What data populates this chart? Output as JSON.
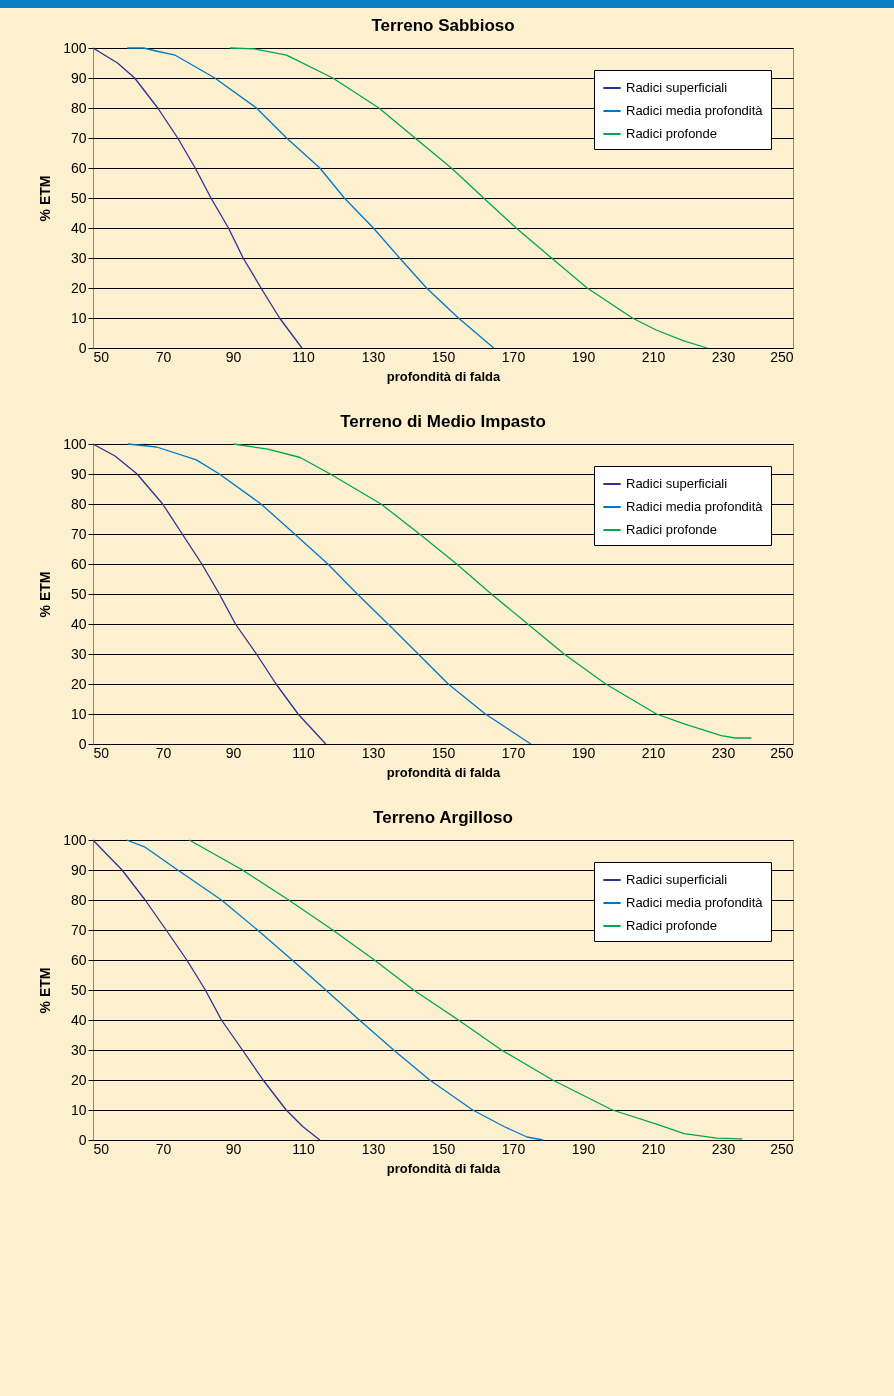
{
  "chart_data": [
    {
      "type": "line",
      "title": "Terreno Sabbioso",
      "xlabel": "profondità di falda",
      "ylabel": "% ETM",
      "xlim": [
        50,
        250
      ],
      "xticks": [
        50,
        70,
        90,
        110,
        130,
        150,
        170,
        190,
        210,
        230,
        250
      ],
      "ylim": [
        0,
        100
      ],
      "yticks": [
        0,
        10,
        20,
        30,
        40,
        50,
        60,
        70,
        80,
        90,
        100
      ],
      "grid": "y",
      "legend": "top right",
      "series": [
        {
          "name": "Radici superficiali",
          "color": "#2e3192",
          "x": [
            50,
            57,
            61.9,
            68.5,
            74.2,
            79.2,
            83.7,
            88.7,
            92.9,
            98,
            103.3,
            109.7
          ],
          "values": [
            100,
            95,
            90,
            80,
            70,
            60,
            50,
            40,
            30,
            20,
            10,
            0
          ]
        },
        {
          "name": "Radici media profondità",
          "color": "#0078c8",
          "x": [
            59.8,
            64.4,
            68,
            73.5,
            84.8,
            96.7,
            105.3,
            114.8,
            121.8,
            130.1,
            137.6,
            145.3,
            154.4,
            164.5
          ],
          "values": [
            100,
            100,
            99,
            97.6,
            90,
            80,
            70,
            60,
            50,
            40,
            30,
            20,
            10,
            0
          ]
        },
        {
          "name": "Radici profonde",
          "color": "#00a651",
          "x": [
            89.1,
            96,
            105.3,
            118.5,
            131.7,
            142,
            152.4,
            161.6,
            170.9,
            181,
            191.2,
            204.1,
            210.9,
            218.8,
            225.5
          ],
          "values": [
            100,
            99.7,
            97.6,
            90,
            80,
            70,
            60,
            50,
            40,
            30,
            20,
            10,
            6,
            2.4,
            0
          ]
        }
      ]
    },
    {
      "type": "line",
      "title": "Terreno di Medio Impasto",
      "xlabel": "profondità di falda",
      "ylabel": "% ETM",
      "xlim": [
        50,
        250
      ],
      "xticks": [
        50,
        70,
        90,
        110,
        130,
        150,
        170,
        190,
        210,
        230,
        250
      ],
      "ylim": [
        0,
        100
      ],
      "yticks": [
        0,
        10,
        20,
        30,
        40,
        50,
        60,
        70,
        80,
        90,
        100
      ],
      "grid": "y",
      "legend": "top right",
      "series": [
        {
          "name": "Radici superficiali",
          "color": "#2e3192",
          "x": [
            50,
            56.3,
            62.6,
            69.9,
            75.5,
            81.1,
            86.1,
            90.7,
            96.7,
            102.3,
            108.6,
            116.5
          ],
          "values": [
            100,
            96,
            90,
            80,
            70,
            60,
            50,
            40,
            30,
            20,
            10,
            0
          ]
        },
        {
          "name": "Radici media profondità",
          "color": "#0078c8",
          "x": [
            59.9,
            68.2,
            79.5,
            86.1,
            98,
            107.6,
            117.1,
            125.5,
            134.3,
            142.9,
            151.5,
            162.1,
            175.1
          ],
          "values": [
            100,
            99,
            94.7,
            90,
            80,
            70,
            60,
            50,
            40,
            30,
            20,
            10,
            0
          ]
        },
        {
          "name": "Radici profonde",
          "color": "#00a651",
          "x": [
            90.1,
            100,
            109.2,
            117.8,
            132.3,
            143.3,
            153.9,
            163.8,
            174.2,
            184.6,
            196.5,
            211,
            218.9,
            229.5,
            233.5,
            238.1
          ],
          "values": [
            100,
            98.3,
            95.5,
            90,
            80,
            70,
            60,
            50,
            40,
            30,
            20,
            10,
            6.7,
            2.8,
            2,
            2
          ]
        }
      ]
    },
    {
      "type": "line",
      "title": "Terreno Argilloso",
      "xlabel": "profondità di falda",
      "ylabel": "% ETM",
      "xlim": [
        50,
        250
      ],
      "xticks": [
        50,
        70,
        90,
        110,
        130,
        150,
        170,
        190,
        210,
        230,
        250
      ],
      "ylim": [
        0,
        100
      ],
      "yticks": [
        0,
        10,
        20,
        30,
        40,
        50,
        60,
        70,
        80,
        90,
        100
      ],
      "grid": "y",
      "legend": "top right",
      "series": [
        {
          "name": "Radici superficiali",
          "color": "#2e3192",
          "x": [
            50,
            53.7,
            58.3,
            64.9,
            70.9,
            76.8,
            82.1,
            86.7,
            92.7,
            98.6,
            105.2,
            109.9,
            114.8
          ],
          "values": [
            100,
            95.5,
            90,
            80,
            70,
            60,
            50,
            40,
            30,
            20,
            10,
            4.5,
            0
          ]
        },
        {
          "name": "Radici media profondità",
          "color": "#0078c8",
          "x": [
            59.6,
            64.9,
            74.2,
            86.7,
            97,
            106.9,
            116.5,
            126.1,
            135.9,
            146.2,
            158.5,
            167.4,
            174,
            178.6
          ],
          "values": [
            100,
            97.6,
            90,
            80,
            70,
            60,
            50,
            40,
            30,
            20,
            10,
            4.5,
            1,
            0
          ]
        },
        {
          "name": "Radici profonde",
          "color": "#00a651",
          "x": [
            77.5,
            92.7,
            105.9,
            118.5,
            130.4,
            141.6,
            154.4,
            166.7,
            181.3,
            198.4,
            211,
            218.9,
            228.2,
            235.5
          ],
          "values": [
            100,
            90,
            80,
            70,
            60,
            50,
            40,
            30,
            20,
            10,
            5.3,
            2.1,
            0.6,
            0.4
          ]
        }
      ]
    }
  ]
}
